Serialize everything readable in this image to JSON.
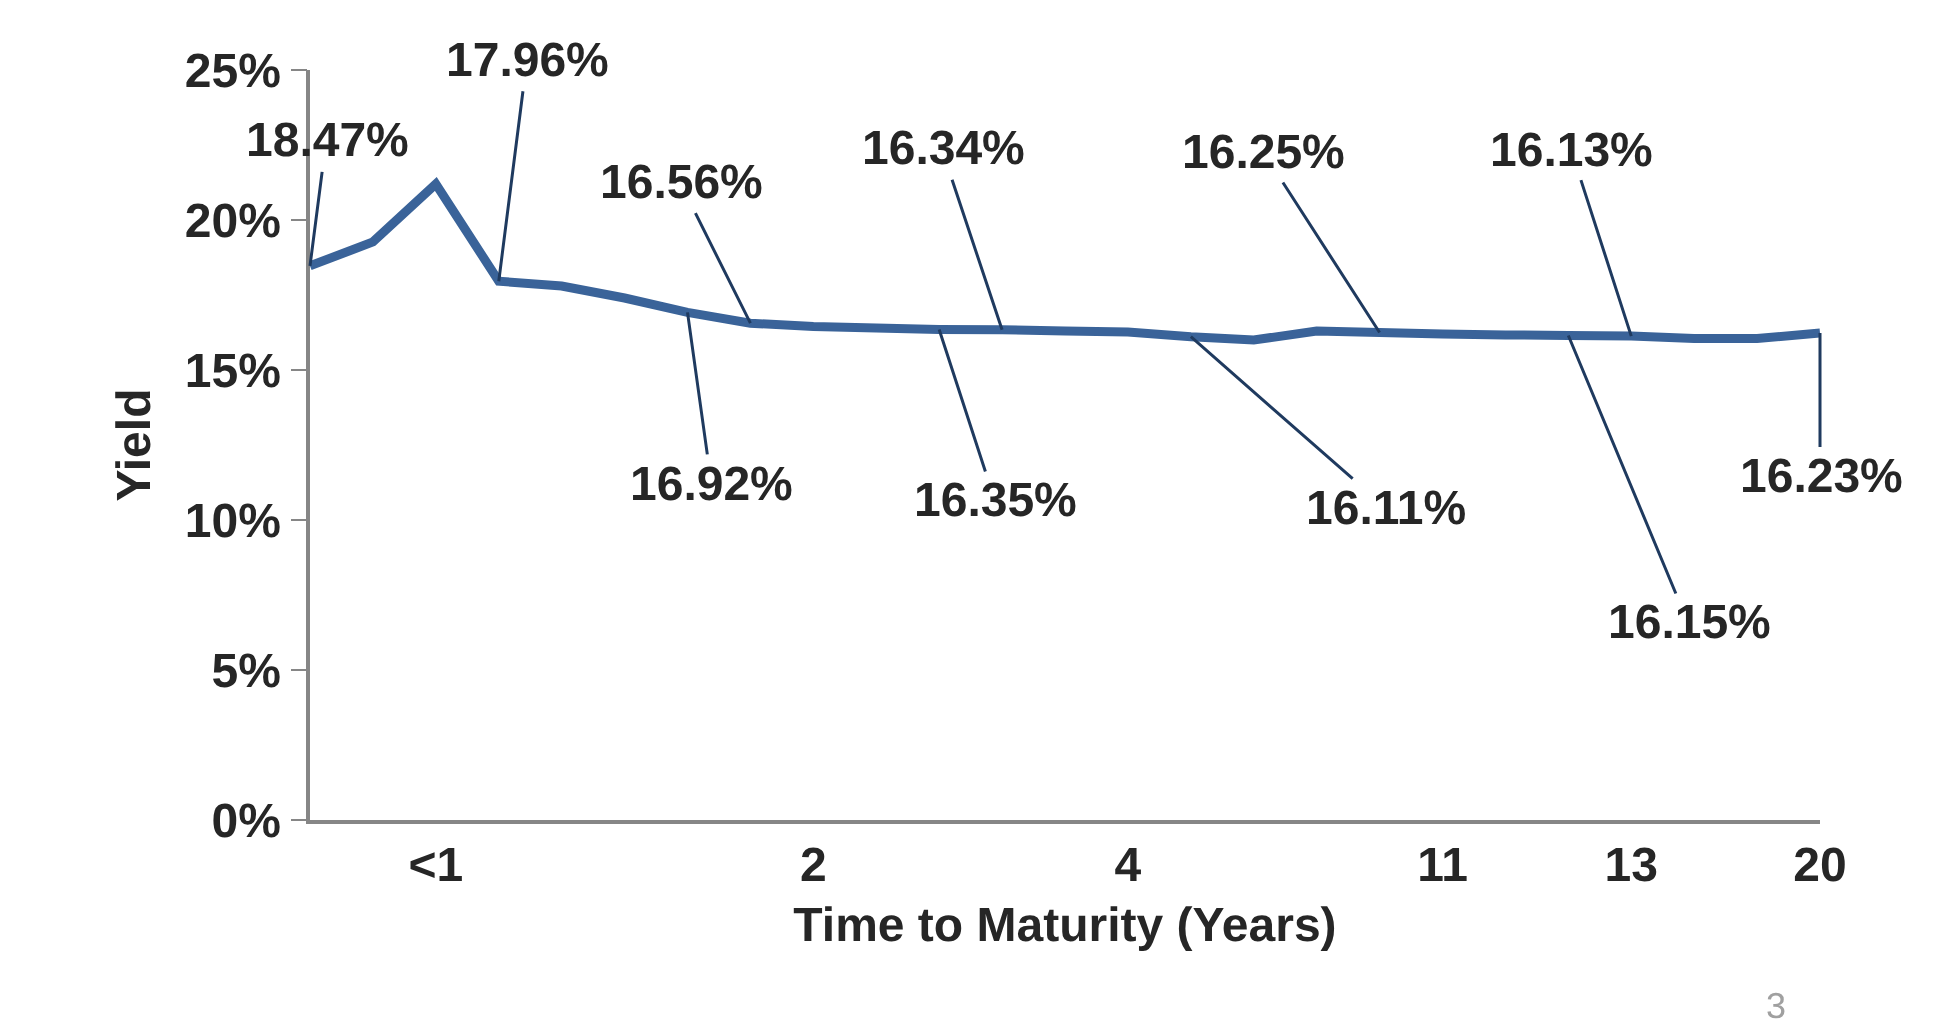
{
  "chart_data": {
    "type": "line",
    "xlabel": "Time to Maturity (Years)",
    "ylabel": "Yield",
    "categories": [
      null,
      null,
      "<1",
      null,
      null,
      null,
      null,
      null,
      "2",
      null,
      null,
      null,
      null,
      "4",
      null,
      null,
      null,
      null,
      "11",
      null,
      null,
      "13",
      null,
      null,
      "20"
    ],
    "series": [
      {
        "color": "#3a6399",
        "values": [
          18.47,
          19.27,
          21.2,
          17.96,
          17.8,
          17.4,
          16.92,
          16.56,
          16.45,
          16.4,
          16.35,
          16.34,
          16.3,
          16.27,
          16.11,
          16.0,
          16.3,
          16.25,
          16.2,
          16.17,
          16.15,
          16.13,
          16.05,
          16.05,
          16.23
        ],
        "value_labels": [
          "18.47%",
          null,
          null,
          "17.96%",
          null,
          null,
          "16.92%",
          "16.56%",
          null,
          null,
          "16.35%",
          "16.34%",
          null,
          null,
          "16.11%",
          null,
          null,
          "16.25%",
          null,
          null,
          "16.15%",
          "16.13%",
          null,
          null,
          "16.23%"
        ]
      }
    ],
    "ylim": [
      0,
      25
    ],
    "yticks": [
      {
        "value": 0,
        "label": "0%"
      },
      {
        "value": 5,
        "label": "5%"
      },
      {
        "value": 10,
        "label": "10%"
      },
      {
        "value": 15,
        "label": "15%"
      },
      {
        "value": 20,
        "label": "20%"
      },
      {
        "value": 25,
        "label": "25%"
      }
    ],
    "legend": false,
    "marker": "none",
    "line_style": "solid",
    "annotations": [
      "3"
    ]
  }
}
